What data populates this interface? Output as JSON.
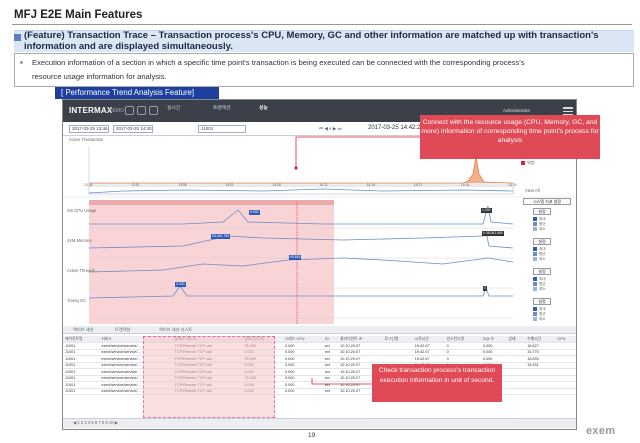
{
  "slide": {
    "title": "MFJ E2E Main Features",
    "feature": "(Feature) Transaction Trace – Transaction process's CPU, Memory, GC and other information are matched up with transaction's information and are displayed simultaneously.",
    "description_line1": "Execution information of a section in which a specific time point's transaction is being executed can be connected with the corresponding process's",
    "description_line2": "resource usage information for analysis.",
    "section_label": "[ Performance Trend Analysis Feature]",
    "page_number": "19",
    "logo": "exem"
  },
  "app": {
    "brand": "INTERMAX",
    "brand_sub": "DEMO",
    "user": "Administrator",
    "date_from": "2017-03-25 13:46",
    "date_to": "2017-03-25 14:30",
    "filter_value": "J1001",
    "timestamp": "2017-03-25 14:42:24",
    "active_tx_label": "Active Transaction",
    "active_tx_peak": "4,404",
    "active_tx_time_labels": [
      "13:46",
      "13:51",
      "13:56",
      "14:01",
      "14:06",
      "14:11",
      "14:16",
      "14:21",
      "14:26",
      "14:30"
    ],
    "view_all": "View All",
    "tabs": [
      "실시간",
      "트랜잭션",
      "성능"
    ],
    "panels": [
      {
        "label": "OS CPU Usage",
        "peak_label": "5.900",
        "end_label": "1.000"
      },
      {
        "label": "JVM Memory",
        "peak_label": "93,062,705",
        "end_label": "0.08,062,560"
      },
      {
        "label": "Active Threads",
        "peak_label": "69,816",
        "end_label": ""
      },
      {
        "label": "Young GC",
        "peak_label": "0.000",
        "end_label": "0"
      }
    ],
    "panel_legend": [
      "최대",
      "평균",
      "최소"
    ],
    "legend_button": "설정",
    "side_button": "시스템 지표 설정",
    "tx_legend": [
      "정상",
      "경고",
      "위험"
    ],
    "grid_tabs": [
      "액티브 세션",
      "트랜잭션",
      "액티브 세션 리스트"
    ],
    "grid_headers": [
      "에이전트명",
      "서비스",
      "클래스 메소드",
      "경과시간(초)",
      "스레드 CPU",
      "IO",
      "클라이언트 IP",
      "로그인명",
      "시작시간",
      "인스턴스명",
      "SQL수",
      "상태",
      "수행시간",
      "CPU"
    ],
    "grid_rows": [
      [
        "J1001",
        "execl/service/service/...",
        "TCP/Remote TCP call",
        "75.000",
        "0.000",
        "exi",
        "10.10.20.07",
        "",
        "19:42.67",
        "0",
        "0.000",
        "",
        "15.627",
        ""
      ],
      [
        "J1001",
        "execl/service/service/...",
        "TCP/Remote TCP call",
        "0.000",
        "0.000",
        "ext",
        "10.10.20.07",
        "",
        "19:42.67",
        "0",
        "0.000",
        "",
        "15.770",
        ""
      ],
      [
        "J1001",
        "execl/service/service/...",
        "TCP/Remote TCP call",
        "75.000",
        "0.000",
        "exi",
        "10.10.20.07",
        "",
        "19:42.67",
        "0",
        "0.000",
        "",
        "15.833",
        ""
      ],
      [
        "J1001",
        "execl/service/service/...",
        "TCP/Remote TCP call",
        "0.000",
        "0.000",
        "ext",
        "10.10.20.07",
        "",
        "19:42.67",
        "0",
        "0.000",
        "",
        "15.931",
        ""
      ],
      [
        "J1001",
        "execl/service/service/...",
        "TCP/Remote TCP call",
        "0.000",
        "0.000",
        "ext",
        "10.10.20.07",
        "",
        "",
        "",
        "",
        "",
        "",
        ""
      ],
      [
        "J1001",
        "execl/service/service/...",
        "TCP/Remote TCP call",
        "75.000",
        "0.000",
        "exi",
        "10.10.20.07",
        "",
        "",
        "",
        "",
        "",
        "",
        ""
      ],
      [
        "J1001",
        "execl/service/service/...",
        "TCP/Remote TCP call",
        "0.000",
        "0.000",
        "ext",
        "10.10.20.07",
        "",
        "",
        "",
        "",
        "",
        "",
        ""
      ],
      [
        "J1001",
        "execl/service/service/...",
        "TCP/Remote TCP call",
        "0.000",
        "0.000",
        "ext",
        "10.10.20.07",
        "",
        "",
        "",
        "",
        "",
        "",
        ""
      ]
    ],
    "pager": [
      "1",
      "2",
      "3",
      "4",
      "5",
      "6",
      "7",
      "8",
      "9",
      "10"
    ],
    "colors": {
      "header": "#3c4049",
      "highlight": "#f6c6c9",
      "callout": "#e04a56",
      "series_blue": "#6a8dc7",
      "tx_orange": "#e8895a"
    }
  },
  "callouts": {
    "c1": "Connect with the resource usage (CPU, Memory, GC, and more) information of corresponding time point's process for analysis",
    "c2": "Check transaction process's transaction execution information in unit of second."
  }
}
